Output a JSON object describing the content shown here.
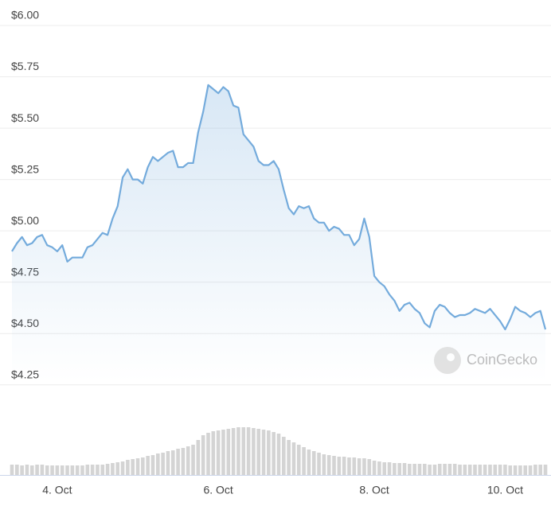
{
  "chart_data": {
    "type": "line",
    "categories": [
      null,
      null,
      null,
      null,
      null,
      null,
      null,
      null,
      null,
      "4. Oct",
      null,
      null,
      null,
      null,
      null,
      null,
      null,
      null,
      null,
      null,
      null,
      null,
      null,
      null,
      null,
      null,
      null,
      null,
      null,
      null,
      null,
      null,
      null,
      null,
      null,
      null,
      null,
      null,
      null,
      null,
      null,
      "6. Oct",
      null,
      null,
      null,
      null,
      null,
      null,
      null,
      null,
      null,
      null,
      null,
      null,
      null,
      null,
      null,
      null,
      null,
      null,
      null,
      null,
      null,
      null,
      null,
      null,
      null,
      null,
      null,
      null,
      null,
      null,
      "8. Oct",
      null,
      null,
      null,
      null,
      null,
      null,
      null,
      null,
      null,
      null,
      null,
      null,
      null,
      null,
      null,
      null,
      null,
      null,
      null,
      null,
      null,
      null,
      null,
      null,
      null,
      "10. Oct",
      null,
      null,
      null,
      null,
      null,
      null,
      null,
      null
    ],
    "series": [
      {
        "color": "#74abdc",
        "values": [
          4.9,
          4.94,
          4.97,
          4.93,
          4.94,
          4.97,
          4.98,
          4.93,
          4.92,
          4.9,
          4.93,
          4.85,
          4.87,
          4.87,
          4.87,
          4.92,
          4.93,
          4.96,
          4.99,
          4.98,
          5.06,
          5.12,
          5.26,
          5.3,
          5.25,
          5.25,
          5.23,
          5.31,
          5.36,
          5.34,
          5.36,
          5.38,
          5.39,
          5.31,
          5.31,
          5.33,
          5.33,
          5.48,
          5.58,
          5.71,
          5.69,
          5.67,
          5.7,
          5.68,
          5.61,
          5.6,
          5.47,
          5.44,
          5.41,
          5.34,
          5.32,
          5.32,
          5.34,
          5.3,
          5.2,
          5.11,
          5.08,
          5.12,
          5.11,
          5.12,
          5.06,
          5.04,
          5.04,
          5.0,
          5.02,
          5.01,
          4.98,
          4.98,
          4.93,
          4.96,
          5.06,
          4.97,
          4.78,
          4.75,
          4.73,
          4.69,
          4.66,
          4.61,
          4.64,
          4.65,
          4.62,
          4.6,
          4.55,
          4.53,
          4.61,
          4.64,
          4.63,
          4.6,
          4.58,
          4.59,
          4.59,
          4.6,
          4.62,
          4.61,
          4.6,
          4.62,
          4.59,
          4.56,
          4.52,
          4.57,
          4.63,
          4.61,
          4.6,
          4.58,
          4.6,
          4.61,
          4.52
        ]
      }
    ],
    "volume": [
      13,
      13,
      12,
      13,
      12,
      13,
      13,
      12,
      12,
      12,
      12,
      12,
      12,
      12,
      12,
      13,
      13,
      13,
      13,
      14,
      15,
      16,
      17,
      19,
      20,
      21,
      22,
      24,
      25,
      27,
      28,
      30,
      31,
      33,
      34,
      36,
      38,
      44,
      50,
      53,
      55,
      56,
      57,
      58,
      59,
      60,
      60,
      60,
      59,
      58,
      57,
      56,
      54,
      52,
      48,
      44,
      41,
      38,
      35,
      32,
      30,
      28,
      26,
      25,
      24,
      23,
      23,
      22,
      22,
      21,
      21,
      20,
      18,
      17,
      16,
      16,
      15,
      15,
      15,
      14,
      14,
      14,
      14,
      13,
      13,
      14,
      14,
      14,
      14,
      13,
      13,
      13,
      13,
      13,
      13,
      13,
      13,
      13,
      13,
      12,
      12,
      12,
      12,
      12,
      13,
      13,
      13
    ],
    "volume_color": "#d4d4d4",
    "y2lim": [
      0,
      100
    ],
    "ylim": [
      4.125,
      6.0465
    ],
    "yticks": [
      {
        "value": 6,
        "label": "$6.00"
      },
      {
        "value": 5.75,
        "label": "$5.75"
      },
      {
        "value": 5.5,
        "label": "$5.50"
      },
      {
        "value": 5.25,
        "label": "$5.25"
      },
      {
        "value": 5,
        "label": "$5.00"
      },
      {
        "value": 4.75,
        "label": "$4.75"
      },
      {
        "value": 4.5,
        "label": "$4.50"
      },
      {
        "value": 4.25,
        "label": "$4.25"
      }
    ],
    "grid": true,
    "watermark": "CoinGecko"
  }
}
